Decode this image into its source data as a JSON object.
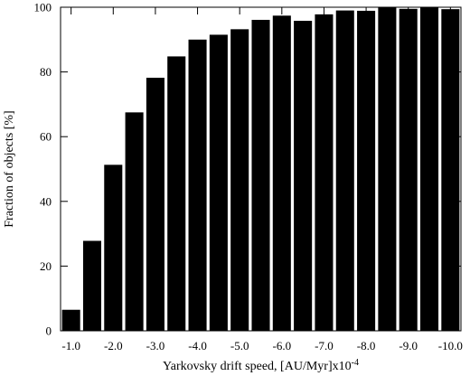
{
  "chart_data": {
    "type": "bar",
    "title": "",
    "xlabel": "Yarkovsky drift speed,  [AU/Myr]x10",
    "xlabel_exponent": "-4",
    "ylabel": "Fraction of objects [%]",
    "ylim": [
      0,
      100
    ],
    "yticks": [
      0,
      20,
      40,
      60,
      80,
      100
    ],
    "xtick_labels": [
      "-1.0",
      "-2.0",
      "-3.0",
      "-4.0",
      "-5.0",
      "-6.0",
      "-7.0",
      "-8.0",
      "-9.0",
      "-10.0"
    ],
    "categories": [
      "-1.0",
      "-1.5",
      "-2.0",
      "-2.5",
      "-3.0",
      "-3.5",
      "-4.0",
      "-4.5",
      "-5.0",
      "-5.5",
      "-6.0",
      "-6.5",
      "-7.0",
      "-7.5",
      "-8.0",
      "-8.5",
      "-9.0",
      "-9.5",
      "-10.0"
    ],
    "values": [
      6.5,
      27.8,
      51.3,
      67.5,
      78.2,
      84.8,
      90.0,
      91.5,
      93.2,
      96.1,
      97.4,
      95.8,
      97.8,
      99.0,
      98.9,
      100,
      99.5,
      100,
      99.4
    ],
    "bar_color": "#000000",
    "grid": false
  }
}
